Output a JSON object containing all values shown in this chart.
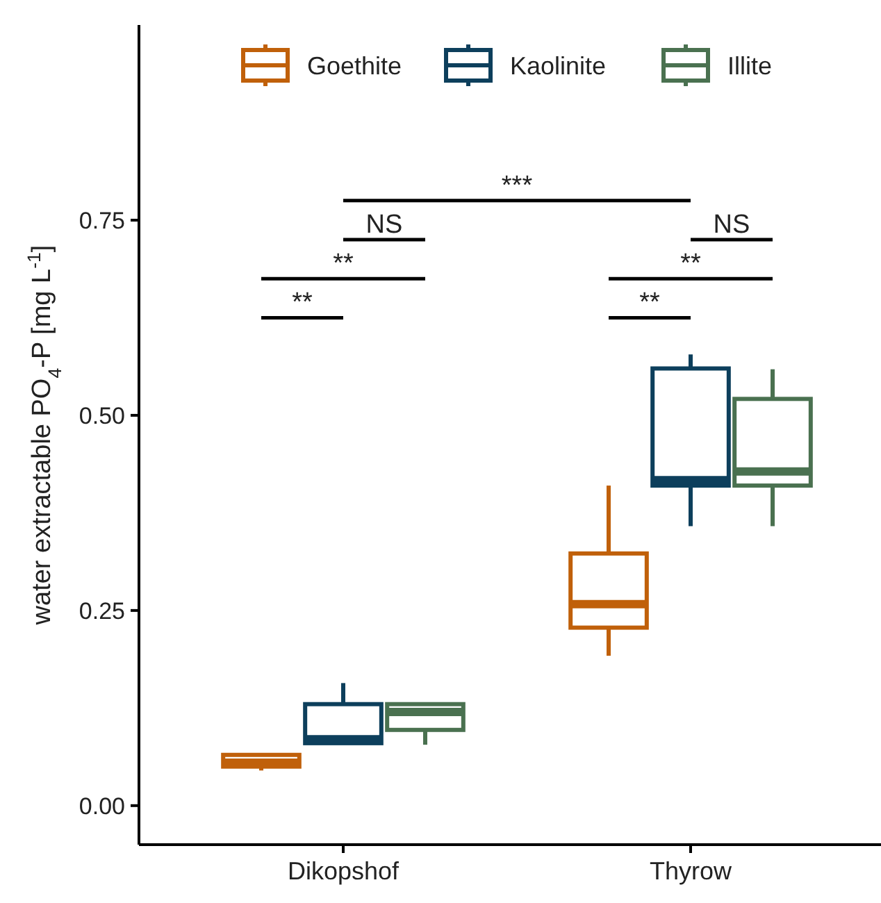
{
  "chart_data": {
    "type": "box",
    "ylabel": "water extractable PO$_{4}$-P [mg L$^{-1}$]",
    "categories": [
      "Dikopshof",
      "Thyrow"
    ],
    "ylim": [
      -0.05,
      1.0
    ],
    "yticks": [
      {
        "value": 0,
        "label": "0.00"
      },
      {
        "value": 0.25,
        "label": "0.25"
      },
      {
        "value": 0.5,
        "label": "0.50"
      },
      {
        "value": 0.75,
        "label": "0.75"
      }
    ],
    "legend": "top",
    "grid": false,
    "series": [
      {
        "name": "Goethite",
        "color": "#c0600a",
        "boxes": [
          {
            "low": 0.045,
            "q1": 0.05,
            "median": 0.055,
            "q3": 0.065,
            "high": 0.065
          },
          {
            "low": 0.192,
            "q1": 0.228,
            "median": 0.258,
            "q3": 0.323,
            "high": 0.41
          }
        ]
      },
      {
        "name": "Kaolinite",
        "color": "#0d3f5c",
        "boxes": [
          {
            "low": 0.08,
            "q1": 0.08,
            "median": 0.085,
            "q3": 0.13,
            "high": 0.157
          },
          {
            "low": 0.358,
            "q1": 0.41,
            "median": 0.417,
            "q3": 0.56,
            "high": 0.578
          }
        ]
      },
      {
        "name": "Illite",
        "color": "#4a7150",
        "boxes": [
          {
            "low": 0.078,
            "q1": 0.097,
            "median": 0.12,
            "q3": 0.13,
            "high": 0.13
          },
          {
            "low": 0.358,
            "q1": 0.41,
            "median": 0.428,
            "q3": 0.521,
            "high": 0.559
          }
        ]
      }
    ],
    "annotations": [
      "**",
      "**",
      "NS",
      "***",
      "**",
      "**",
      "NS"
    ]
  }
}
